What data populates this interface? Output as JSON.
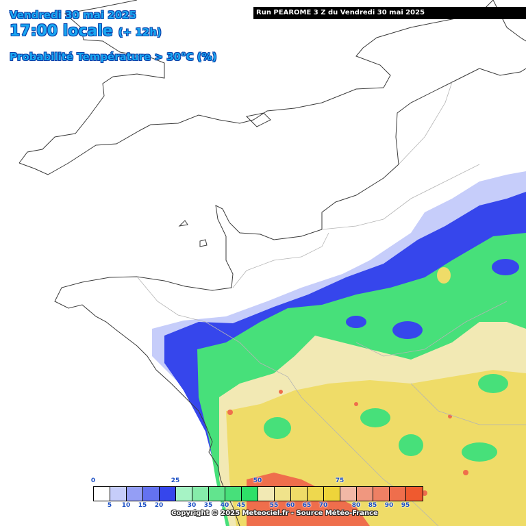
{
  "header": {
    "date": "Vendredi 30 mai 2025",
    "time": "17:00 locale",
    "lead": "(+ 12h)",
    "parameter": "Probabilité Température > 30°C (%)"
  },
  "run_banner": "Run PEAROME 3 Z du Vendredi 30 mai 2025",
  "legend": {
    "colors": [
      "#ffffff",
      "#c6cdfa",
      "#949ef5",
      "#6472f0",
      "#3646ec",
      "#a6f3c5",
      "#86ecaa",
      "#62e48e",
      "#47e07a",
      "#2ee068",
      "#f2e9b4",
      "#f0e38b",
      "#efdc68",
      "#eed84e",
      "#eed43a",
      "#f2b8a6",
      "#f0977f",
      "#ee8064",
      "#ef6e4c",
      "#ef5a2f"
    ],
    "top_ticks": [
      "0",
      "25",
      "50",
      "75"
    ],
    "bottom_ticks": [
      "5",
      "10",
      "15",
      "20",
      "30",
      "35",
      "40",
      "45",
      "55",
      "60",
      "65",
      "70",
      "80",
      "85",
      "90",
      "95"
    ]
  },
  "copyright": "Copyright © 2025 Meteociel.fr - Source Météo-France",
  "map": {
    "region": "Nord-Ouest de la France",
    "colors": {
      "blue": "#3646ec",
      "blue_light": "#c6cdfa",
      "green": "#47e07a",
      "green_light": "#86ecaa",
      "yellow": "#efdc68",
      "yellow_light": "#f2e9b4",
      "orange": "#ef6e4c",
      "salmon": "#f0977f"
    }
  }
}
